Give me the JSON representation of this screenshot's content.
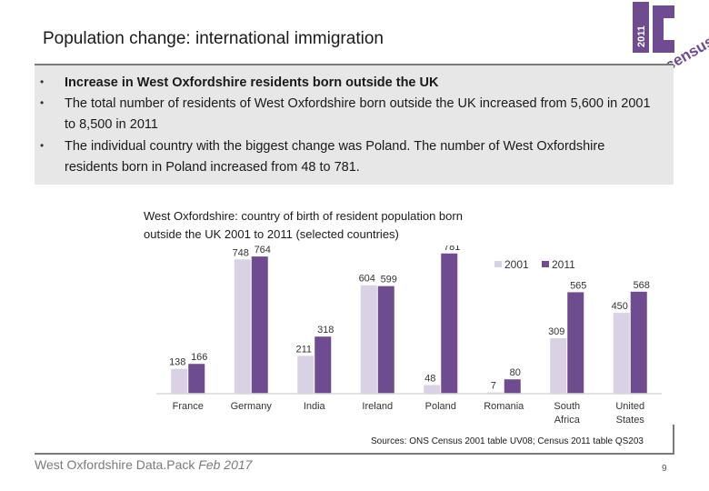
{
  "title": "Population change: international immigration",
  "logo": {
    "year": "2011",
    "letter": "C",
    "word": "census"
  },
  "bullets": [
    "Increase in West Oxfordshire residents born outside the UK",
    "The total number of residents of West Oxfordshire born outside the UK increased from 5,600 in 2001 to 8,500 in 2011",
    "The individual country with the biggest change was Poland.  The number of West Oxfordshire residents born in Poland increased from 48 to 781."
  ],
  "chart_data": {
    "type": "bar",
    "title_line1": "West Oxfordshire: country of birth of resident population born",
    "title_line2": "outside the UK 2001 to 2011 (selected countries)",
    "categories": [
      "France",
      "Germany",
      "India",
      "Ireland",
      "Poland",
      "Romania",
      "South Africa",
      "United States"
    ],
    "series": [
      {
        "name": "2001",
        "values": [
          138,
          748,
          211,
          604,
          48,
          7,
          309,
          450
        ],
        "color": "#d9d1e4"
      },
      {
        "name": "2011",
        "values": [
          166,
          764,
          318,
          599,
          781,
          80,
          565,
          568
        ],
        "color": "#6e4c8f"
      }
    ],
    "ylim": [
      0,
      800
    ],
    "legend": "top-right",
    "grid": false
  },
  "source": "Sources: ONS Census 2001 table UV08; Census 2011 table QS203",
  "footer": {
    "name": "West Oxfordshire Data.Pack",
    "date": "Feb 2017"
  },
  "page_number": "9",
  "colors": {
    "brand_purple": "#6e4c8f",
    "light_purple": "#d9d1e4"
  }
}
